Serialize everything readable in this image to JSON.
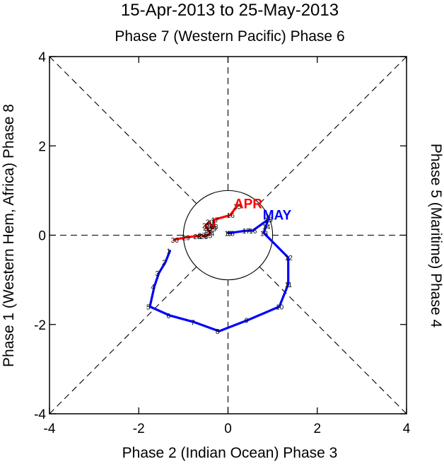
{
  "chart_data": {
    "type": "line",
    "title": "15-Apr-2013 to 25-May-2013",
    "top_label": "Phase 7 (Western Pacific) Phase 6",
    "xlabel": "Phase 2 (Indian Ocean) Phase 3",
    "ylabel": "Phase 1 (Western Hem, Africa) Phase 8",
    "right_label": "Phase 5 (Maritime) Phase 4",
    "xlim": [
      -4,
      4
    ],
    "ylim": [
      -4,
      4
    ],
    "ticks": [
      -4,
      -2,
      0,
      2,
      4
    ],
    "tick_labels": [
      "-4",
      "-2",
      "0",
      "2",
      "4"
    ],
    "series": [
      {
        "name": "APR",
        "color": "#ff0000",
        "days": [
          "15",
          "16",
          "17",
          "18",
          "19",
          "20",
          "21",
          "22",
          "23",
          "24",
          "25",
          "26",
          "27",
          "28",
          "29",
          "30"
        ],
        "x": [
          0.2,
          0.05,
          -0.3,
          -0.32,
          -0.35,
          -0.42,
          -0.5,
          -0.48,
          -0.45,
          -0.4,
          -0.45,
          -0.55,
          -0.6,
          -0.7,
          -0.95,
          -1.2
        ],
        "y": [
          0.65,
          0.45,
          0.35,
          0.2,
          0.15,
          0.3,
          0.22,
          0.17,
          0.12,
          0.05,
          0.0,
          -0.02,
          0.0,
          -0.02,
          -0.05,
          -0.1
        ],
        "label_text": "APR",
        "label_at": [
          0.45,
          0.6
        ]
      },
      {
        "name": "MAY",
        "color": "#0000ff",
        "days": [
          "1",
          "2",
          "3",
          "4",
          "5",
          "6",
          "7",
          "8",
          "9",
          "10",
          "11",
          "12",
          "13",
          "14",
          "15",
          "16",
          "17",
          "18",
          "19"
        ],
        "x": [
          -1.3,
          -1.4,
          -1.55,
          -1.65,
          -1.75,
          -1.3,
          -0.75,
          -0.2,
          0.45,
          1.15,
          1.35,
          1.35,
          0.8,
          0.85,
          0.9,
          0.55,
          0.4,
          0.05,
          0.0
        ],
        "y": [
          -0.35,
          -0.6,
          -0.85,
          -1.15,
          -1.6,
          -1.8,
          -1.95,
          -2.15,
          -1.9,
          -1.6,
          -1.1,
          -0.5,
          0.05,
          0.2,
          0.35,
          0.1,
          0.1,
          0.05,
          0.05
        ],
        "label_text": "MAY",
        "label_at": [
          1.1,
          0.35
        ]
      }
    ],
    "amplitude_circle_radius": 1
  }
}
